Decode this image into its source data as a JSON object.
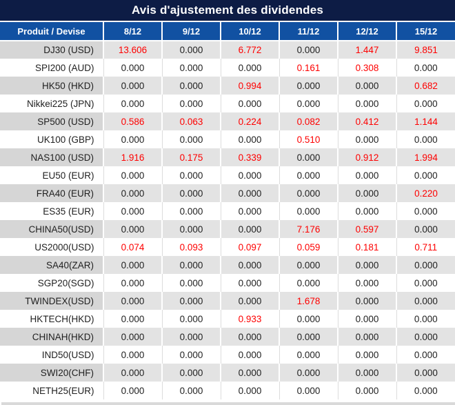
{
  "title": "Avis d'ajustement des dividendes",
  "colors": {
    "title_navy": "#0d1c45",
    "header_blue": "#1151a2",
    "value_red": "#fe0000",
    "row_gray": "#e3e3e3",
    "product_gray": "#d6d6d6"
  },
  "table": {
    "columns": [
      "Produit / Devise",
      "8/12",
      "9/12",
      "10/12",
      "11/12",
      "12/12",
      "15/12"
    ],
    "rows": [
      {
        "product": "DJ30 (USD)",
        "values": [
          "13.606",
          "0.000",
          "6.772",
          "0.000",
          "1.447",
          "9.851"
        ],
        "red": [
          true,
          false,
          true,
          false,
          true,
          true
        ]
      },
      {
        "product": "SPI200 (AUD)",
        "values": [
          "0.000",
          "0.000",
          "0.000",
          "0.161",
          "0.308",
          "0.000"
        ],
        "red": [
          false,
          false,
          false,
          true,
          true,
          false
        ]
      },
      {
        "product": "HK50 (HKD)",
        "values": [
          "0.000",
          "0.000",
          "0.994",
          "0.000",
          "0.000",
          "0.682"
        ],
        "red": [
          false,
          false,
          true,
          false,
          false,
          true
        ]
      },
      {
        "product": "Nikkei225 (JPN)",
        "values": [
          "0.000",
          "0.000",
          "0.000",
          "0.000",
          "0.000",
          "0.000"
        ],
        "red": [
          false,
          false,
          false,
          false,
          false,
          false
        ]
      },
      {
        "product": "SP500 (USD)",
        "values": [
          "0.586",
          "0.063",
          "0.224",
          "0.082",
          "0.412",
          "1.144"
        ],
        "red": [
          true,
          true,
          true,
          true,
          true,
          true
        ]
      },
      {
        "product": "UK100 (GBP)",
        "values": [
          "0.000",
          "0.000",
          "0.000",
          "0.510",
          "0.000",
          "0.000"
        ],
        "red": [
          false,
          false,
          false,
          true,
          false,
          false
        ]
      },
      {
        "product": "NAS100 (USD)",
        "values": [
          "1.916",
          "0.175",
          "0.339",
          "0.000",
          "0.912",
          "1.994"
        ],
        "red": [
          true,
          true,
          true,
          false,
          true,
          true
        ]
      },
      {
        "product": "EU50 (EUR)",
        "values": [
          "0.000",
          "0.000",
          "0.000",
          "0.000",
          "0.000",
          "0.000"
        ],
        "red": [
          false,
          false,
          false,
          false,
          false,
          false
        ]
      },
      {
        "product": "FRA40 (EUR)",
        "values": [
          "0.000",
          "0.000",
          "0.000",
          "0.000",
          "0.000",
          "0.220"
        ],
        "red": [
          false,
          false,
          false,
          false,
          false,
          true
        ]
      },
      {
        "product": "ES35 (EUR)",
        "values": [
          "0.000",
          "0.000",
          "0.000",
          "0.000",
          "0.000",
          "0.000"
        ],
        "red": [
          false,
          false,
          false,
          false,
          false,
          false
        ]
      },
      {
        "product": "CHINA50(USD)",
        "values": [
          "0.000",
          "0.000",
          "0.000",
          "7.176",
          "0.597",
          "0.000"
        ],
        "red": [
          false,
          false,
          false,
          true,
          true,
          false
        ]
      },
      {
        "product": "US2000(USD)",
        "values": [
          "0.074",
          "0.093",
          "0.097",
          "0.059",
          "0.181",
          "0.711"
        ],
        "red": [
          true,
          true,
          true,
          true,
          true,
          true
        ]
      },
      {
        "product": "SA40(ZAR)",
        "values": [
          "0.000",
          "0.000",
          "0.000",
          "0.000",
          "0.000",
          "0.000"
        ],
        "red": [
          false,
          false,
          false,
          false,
          false,
          false
        ]
      },
      {
        "product": "SGP20(SGD)",
        "values": [
          "0.000",
          "0.000",
          "0.000",
          "0.000",
          "0.000",
          "0.000"
        ],
        "red": [
          false,
          false,
          false,
          false,
          false,
          false
        ]
      },
      {
        "product": "TWINDEX(USD)",
        "values": [
          "0.000",
          "0.000",
          "0.000",
          "1.678",
          "0.000",
          "0.000"
        ],
        "red": [
          false,
          false,
          false,
          true,
          false,
          false
        ]
      },
      {
        "product": "HKTECH(HKD)",
        "values": [
          "0.000",
          "0.000",
          "0.933",
          "0.000",
          "0.000",
          "0.000"
        ],
        "red": [
          false,
          false,
          true,
          false,
          false,
          false
        ]
      },
      {
        "product": "CHINAH(HKD)",
        "values": [
          "0.000",
          "0.000",
          "0.000",
          "0.000",
          "0.000",
          "0.000"
        ],
        "red": [
          false,
          false,
          false,
          false,
          false,
          false
        ]
      },
      {
        "product": "IND50(USD)",
        "values": [
          "0.000",
          "0.000",
          "0.000",
          "0.000",
          "0.000",
          "0.000"
        ],
        "red": [
          false,
          false,
          false,
          false,
          false,
          false
        ]
      },
      {
        "product": "SWI20(CHF)",
        "values": [
          "0.000",
          "0.000",
          "0.000",
          "0.000",
          "0.000",
          "0.000"
        ],
        "red": [
          false,
          false,
          false,
          false,
          false,
          false
        ]
      },
      {
        "product": "NETH25(EUR)",
        "values": [
          "0.000",
          "0.000",
          "0.000",
          "0.000",
          "0.000",
          "0.000"
        ],
        "red": [
          false,
          false,
          false,
          false,
          false,
          false
        ]
      }
    ]
  }
}
